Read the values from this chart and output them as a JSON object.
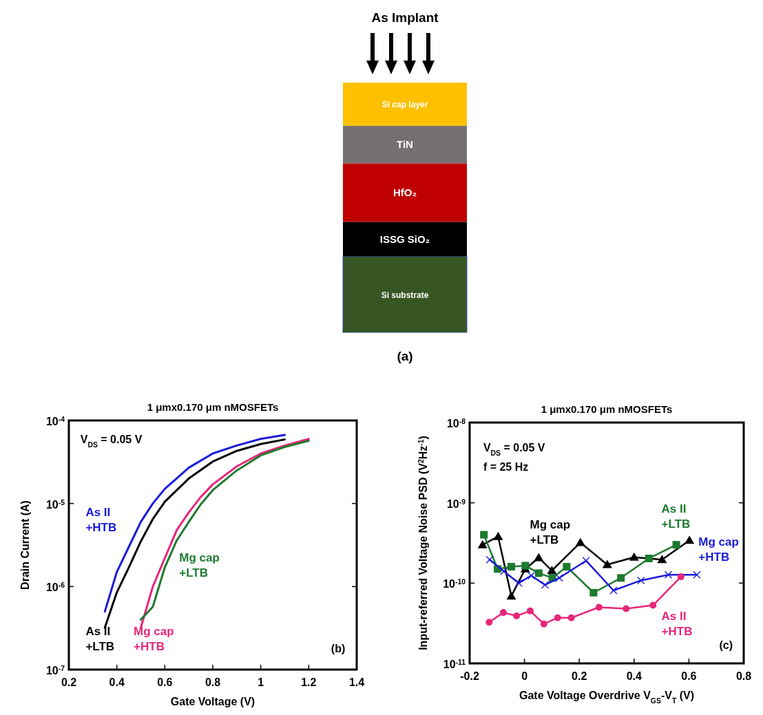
{
  "chart_data": [
    {
      "type": "other",
      "categories": [
        "Si cap layer",
        "TiN",
        "HfO₂",
        "ISSG SiO₂",
        "Si substrate"
      ],
      "colors": [
        "#ffc000",
        "#767171",
        "#c00000",
        "#000000",
        "#375623"
      ],
      "annotations": [
        "As Implant",
        "(a)"
      ]
    },
    {
      "type": "line",
      "title": "1 μmx0.170 μm nMOSFETs",
      "xlabel": "Gate Voltage (V)",
      "ylabel": "Drain Current (A)",
      "log": "y",
      "xlim": [
        0.2,
        1.4
      ],
      "xticks": [
        0.2,
        0.4,
        0.6,
        0.8,
        1,
        1.2,
        1.4
      ],
      "ylim": [
        1e-07,
        0.0001
      ],
      "yticks": [
        {
          "value": 1e-07,
          "label": "10$^{-7}$"
        },
        {
          "value": 1e-06,
          "label": "10$^{-6}$"
        },
        {
          "value": 1e-05,
          "label": "10$^{-5}$"
        },
        {
          "value": 0.0001,
          "label": "10$^{-4}$"
        }
      ],
      "annotations": [
        "V$_{DS}$ = 0.05 V",
        "(b)"
      ],
      "series": [
        {
          "name": "As II +HTB",
          "color": "#1a1adb",
          "x": [
            0.35,
            0.4,
            0.45,
            0.5,
            0.55,
            0.6,
            0.7,
            0.8,
            0.9,
            1.0,
            1.1
          ],
          "values": [
            5e-07,
            1.5e-06,
            3e-06,
            6e-06,
            1e-05,
            1.5e-05,
            2.7e-05,
            4e-05,
            5e-05,
            6e-05,
            6.7e-05
          ]
        },
        {
          "name": "As II +LTB",
          "color": "#000000",
          "x": [
            0.35,
            0.4,
            0.45,
            0.5,
            0.55,
            0.6,
            0.7,
            0.8,
            0.9,
            1.0,
            1.1
          ],
          "values": [
            3.2e-07,
            8.5e-07,
            1.7e-06,
            3.5e-06,
            6.5e-06,
            1.05e-05,
            2e-05,
            3.2e-05,
            4.3e-05,
            5.2e-05,
            5.9e-05
          ]
        },
        {
          "name": "Mg cap +HTB",
          "color": "#e8267a",
          "x": [
            0.5,
            0.55,
            0.6,
            0.65,
            0.7,
            0.75,
            0.8,
            0.9,
            1.0,
            1.1,
            1.2
          ],
          "values": [
            3.2e-07,
            1e-06,
            2.2e-06,
            4.8e-06,
            7.8e-06,
            1.2e-05,
            1.7e-05,
            2.8e-05,
            4e-05,
            5e-05,
            6e-05
          ]
        },
        {
          "name": "Mg cap +LTB",
          "color": "#1e7a2e",
          "x": [
            0.5,
            0.55,
            0.6,
            0.65,
            0.7,
            0.75,
            0.8,
            0.9,
            1.0,
            1.1,
            1.2
          ],
          "values": [
            4e-07,
            5.7e-07,
            1.7e-06,
            3.6e-06,
            6e-06,
            9.8e-06,
            1.45e-05,
            2.5e-05,
            3.8e-05,
            4.8e-05,
            5.7e-05
          ]
        }
      ]
    },
    {
      "type": "line",
      "title": "1 μmx0.170 μm nMOSFETs",
      "xlabel": "Gate Voltage Overdrive V$_{GS}$-V$_{T}$ (V)",
      "ylabel": "Input-referred Voltage Noise PSD (V$^{2}$Hz$^{-1}$)",
      "log": "y",
      "xlim": [
        -0.2,
        0.8
      ],
      "xticks": [
        -0.2,
        0,
        0.2,
        0.4,
        0.6,
        0.8
      ],
      "ylim": [
        1e-11,
        1e-08
      ],
      "yticks": [
        {
          "value": 1e-11,
          "label": "10$^{-11}$"
        },
        {
          "value": 1e-10,
          "label": "10$^{-10}$"
        },
        {
          "value": 1e-09,
          "label": "10$^{-9}$"
        },
        {
          "value": 1e-08,
          "label": "10$^{-8}$"
        }
      ],
      "annotations": [
        "V$_{DS}$ = 0.05 V",
        "f = 25 Hz",
        "(c)"
      ],
      "series": [
        {
          "name": "Mg cap +LTB",
          "color": "#000000",
          "marker": "triangle",
          "x": [
            -0.153,
            -0.096,
            -0.048,
            0.003,
            0.052,
            0.1,
            0.204,
            0.302,
            0.4,
            0.502,
            0.602
          ],
          "values": [
            3e-10,
            3.8e-10,
            6.9e-11,
            1.5e-10,
            2.07e-10,
            1.43e-10,
            3.2e-10,
            1.7e-10,
            2.1e-10,
            1.96e-10,
            3.4e-10
          ]
        },
        {
          "name": "As II +LTB",
          "color": "#1e7a2e",
          "marker": "square",
          "x": [
            -0.148,
            -0.098,
            -0.048,
            0.003,
            0.052,
            0.102,
            0.154,
            0.252,
            0.352,
            0.454,
            0.554
          ],
          "values": [
            4e-10,
            1.5e-10,
            1.6e-10,
            1.65e-10,
            1.33e-10,
            1.16e-10,
            1.6e-10,
            7.6e-11,
            1.16e-10,
            2.03e-10,
            3e-10
          ]
        },
        {
          "name": "Mg cap +HTB",
          "color": "#1a1adb",
          "marker": "cross",
          "x": [
            -0.127,
            -0.075,
            -0.021,
            0.025,
            0.075,
            0.127,
            0.225,
            0.325,
            0.425,
            0.525,
            0.629
          ],
          "values": [
            1.96e-10,
            1.4e-10,
            1e-10,
            1.24e-10,
            9.5e-11,
            1.16e-10,
            1.9e-10,
            8.1e-11,
            1.08e-10,
            1.27e-10,
            1.27e-10
          ]
        },
        {
          "name": "As II +HTB",
          "color": "#e8267a",
          "marker": "circle",
          "x": [
            -0.129,
            -0.077,
            -0.029,
            0.021,
            0.071,
            0.121,
            0.171,
            0.272,
            0.371,
            0.469,
            0.571
          ],
          "values": [
            3.25e-11,
            4.3e-11,
            3.9e-11,
            4.5e-11,
            3.1e-11,
            3.7e-11,
            3.7e-11,
            5e-11,
            4.8e-11,
            5.3e-11,
            1.2e-10
          ]
        }
      ]
    }
  ]
}
